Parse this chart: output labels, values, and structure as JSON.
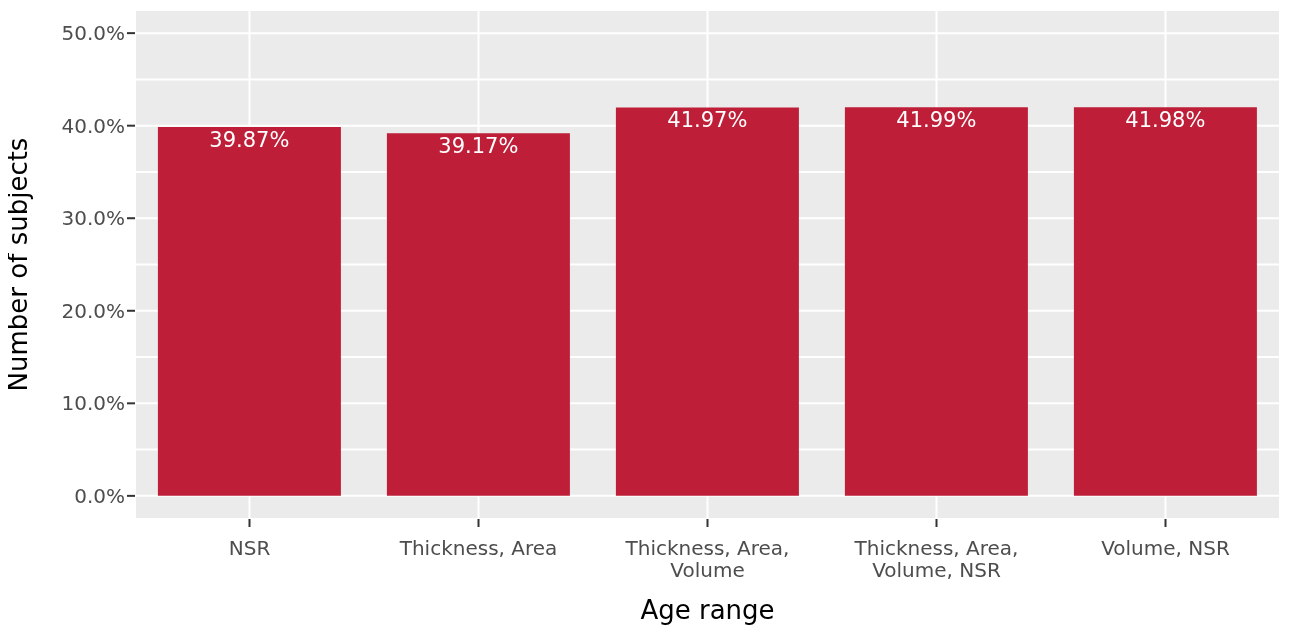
{
  "chart_data": {
    "type": "bar",
    "xlabel": "Age range",
    "ylabel": "Number of subjects",
    "categories": [
      "NSR",
      "Thickness, Area",
      "Thickness, Area, Volume",
      "Thickness, Area, Volume, NSR",
      "Volume, NSR"
    ],
    "values": [
      39.87,
      39.17,
      41.97,
      41.99,
      41.98
    ],
    "value_labels": [
      "39.87%",
      "39.17%",
      "41.97%",
      "41.99%",
      "41.98%"
    ],
    "color": "#be1e37",
    "ylim": [
      -2.5,
      52.5
    ],
    "yticks": [
      {
        "value": 0,
        "label": "0.0%"
      },
      {
        "value": 5,
        "label": null
      },
      {
        "value": 10,
        "label": "10.0%"
      },
      {
        "value": 15,
        "label": null
      },
      {
        "value": 20,
        "label": "20.0%"
      },
      {
        "value": 25,
        "label": null
      },
      {
        "value": 30,
        "label": "30.0%"
      },
      {
        "value": 35,
        "label": null
      },
      {
        "value": 40,
        "label": "40.0%"
      },
      {
        "value": 45,
        "label": null
      },
      {
        "value": 50,
        "label": "50.0%"
      }
    ],
    "grid": true
  }
}
